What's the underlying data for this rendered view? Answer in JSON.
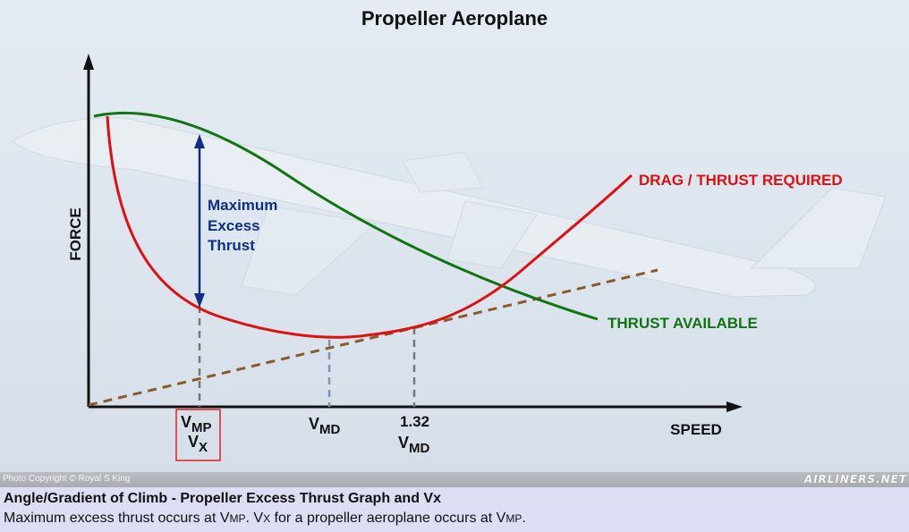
{
  "title": "Propeller Aeroplane",
  "axes": {
    "y_label": "FORCE",
    "x_label": "SPEED"
  },
  "curves": {
    "drag": {
      "label": "DRAG / THRUST REQUIRED",
      "color": "#dd1111"
    },
    "thrust": {
      "label": "THRUST AVAILABLE",
      "color": "#127312"
    },
    "tangent": {
      "color": "#8a5a2b"
    }
  },
  "annotation": {
    "line1": "Maximum",
    "line2": "Excess",
    "line3": "Thrust",
    "color": "#0d2f86"
  },
  "speed_marks": {
    "vmp": {
      "main": "V",
      "sub": "MP"
    },
    "vx": {
      "main": "V",
      "sub": "X"
    },
    "vmd": {
      "main": "V",
      "sub": "MD"
    },
    "vmd132_num": "1.32",
    "vmd132": {
      "main": "V",
      "sub": "MD"
    }
  },
  "photo_credit": "Photo Copyright © Royal S King",
  "photo_logo": "AIRLINERS.NET",
  "caption": {
    "title": "Angle/Gradient of Climb - Propeller Excess Thrust Graph and Vx",
    "body_1": "Maximum excess thrust occurs at V",
    "body_1_sub": "MP",
    "body_2": ". V",
    "body_2_sub": "X",
    "body_3": " for a propeller aeroplane occurs at V",
    "body_3_sub": "MP",
    "body_4": "."
  },
  "colors": {
    "axis": "#111111",
    "marker_box": "#dd2222",
    "dashed_grey": "#777777",
    "dashed_blue": "#7d93b3"
  }
}
